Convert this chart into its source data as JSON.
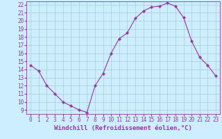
{
  "x": [
    0,
    1,
    2,
    3,
    4,
    5,
    6,
    7,
    8,
    9,
    10,
    11,
    12,
    13,
    14,
    15,
    16,
    17,
    18,
    19,
    20,
    21,
    22,
    23
  ],
  "y": [
    14.5,
    13.8,
    12.0,
    11.0,
    10.0,
    9.5,
    9.0,
    8.7,
    12.0,
    13.5,
    16.0,
    17.8,
    18.5,
    20.3,
    21.2,
    21.7,
    21.8,
    22.2,
    21.8,
    20.4,
    17.5,
    15.5,
    14.5,
    13.2
  ],
  "ylim": [
    8.5,
    22.4
  ],
  "yticks": [
    9,
    10,
    11,
    12,
    13,
    14,
    15,
    16,
    17,
    18,
    19,
    20,
    21,
    22
  ],
  "xlim": [
    -0.5,
    23.5
  ],
  "xticks": [
    0,
    1,
    2,
    3,
    4,
    5,
    6,
    7,
    8,
    9,
    10,
    11,
    12,
    13,
    14,
    15,
    16,
    17,
    18,
    19,
    20,
    21,
    22,
    23
  ],
  "xlabel": "Windchill (Refroidissement éolien,°C)",
  "line_color": "#993399",
  "marker": "P",
  "marker_size": 2.5,
  "linewidth": 0.8,
  "bg_color": "#cceeff",
  "grid_color": "#aacccc",
  "tick_label_fontsize": 5.5,
  "xlabel_fontsize": 6.5
}
